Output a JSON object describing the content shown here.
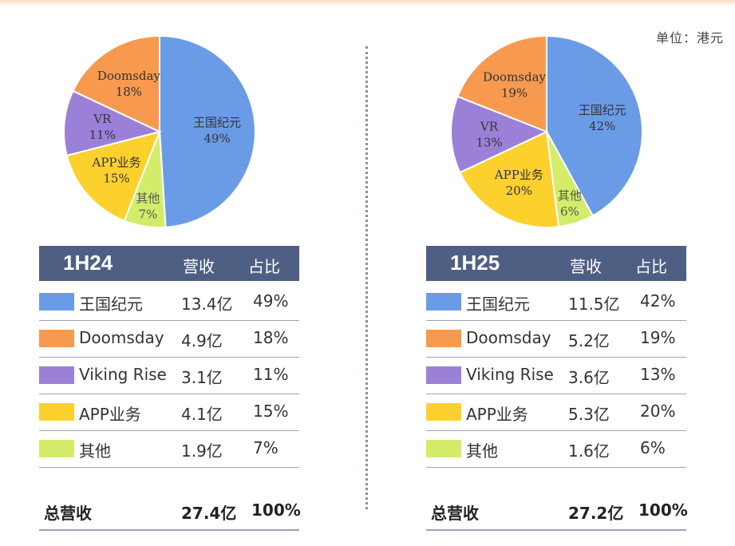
{
  "unit_label": "单位：港元",
  "colors": {
    "王国纪元": "#6a9be6",
    "Doomsday": "#f79a4f",
    "Viking Rise": "#9b80d8",
    "APP业务": "#fcd12e",
    "其他": "#d3ec6a",
    "header_bg": "#4f5f83"
  },
  "columns": {
    "revenue": "营收",
    "share": "占比"
  },
  "chart_data": [
    {
      "type": "pie",
      "period": "1H24",
      "slices": [
        {
          "label": "王国纪元",
          "value": 49,
          "label_text": "49%"
        },
        {
          "label": "其他",
          "value": 7,
          "label_text": "7%"
        },
        {
          "label": "APP业务",
          "value": 15,
          "label_text": "15%"
        },
        {
          "label": "VR",
          "value": 11,
          "label_text": "11%"
        },
        {
          "label": "Doomsday",
          "value": 18,
          "label_text": "18%"
        }
      ],
      "table": [
        {
          "name": "王国纪元",
          "revenue": "13.4亿",
          "share": "49%"
        },
        {
          "name": "Doomsday",
          "revenue": "4.9亿",
          "share": "18%"
        },
        {
          "name": "Viking Rise",
          "revenue": "3.1亿",
          "share": "11%"
        },
        {
          "name": "APP业务",
          "revenue": "4.1亿",
          "share": "15%"
        },
        {
          "name": "其他",
          "revenue": "1.9亿",
          "share": "7%"
        }
      ],
      "total": {
        "name": "总营收",
        "revenue": "27.4亿",
        "share": "100%"
      }
    },
    {
      "type": "pie",
      "period": "1H25",
      "slices": [
        {
          "label": "王国纪元",
          "value": 42,
          "label_text": "42%"
        },
        {
          "label": "其他",
          "value": 6,
          "label_text": "6%"
        },
        {
          "label": "APP业务",
          "value": 20,
          "label_text": "20%"
        },
        {
          "label": "VR",
          "value": 13,
          "label_text": "13%"
        },
        {
          "label": "Doomsday",
          "value": 19,
          "label_text": "19%"
        }
      ],
      "table": [
        {
          "name": "王国纪元",
          "revenue": "11.5亿",
          "share": "42%"
        },
        {
          "name": "Doomsday",
          "revenue": "5.2亿",
          "share": "19%"
        },
        {
          "name": "Viking Rise",
          "revenue": "3.6亿",
          "share": "13%"
        },
        {
          "name": "APP业务",
          "revenue": "5.3亿",
          "share": "20%"
        },
        {
          "name": "其他",
          "revenue": "1.6亿",
          "share": "6%"
        }
      ],
      "total": {
        "name": "总营收",
        "revenue": "27.2亿",
        "share": "100%"
      }
    }
  ]
}
